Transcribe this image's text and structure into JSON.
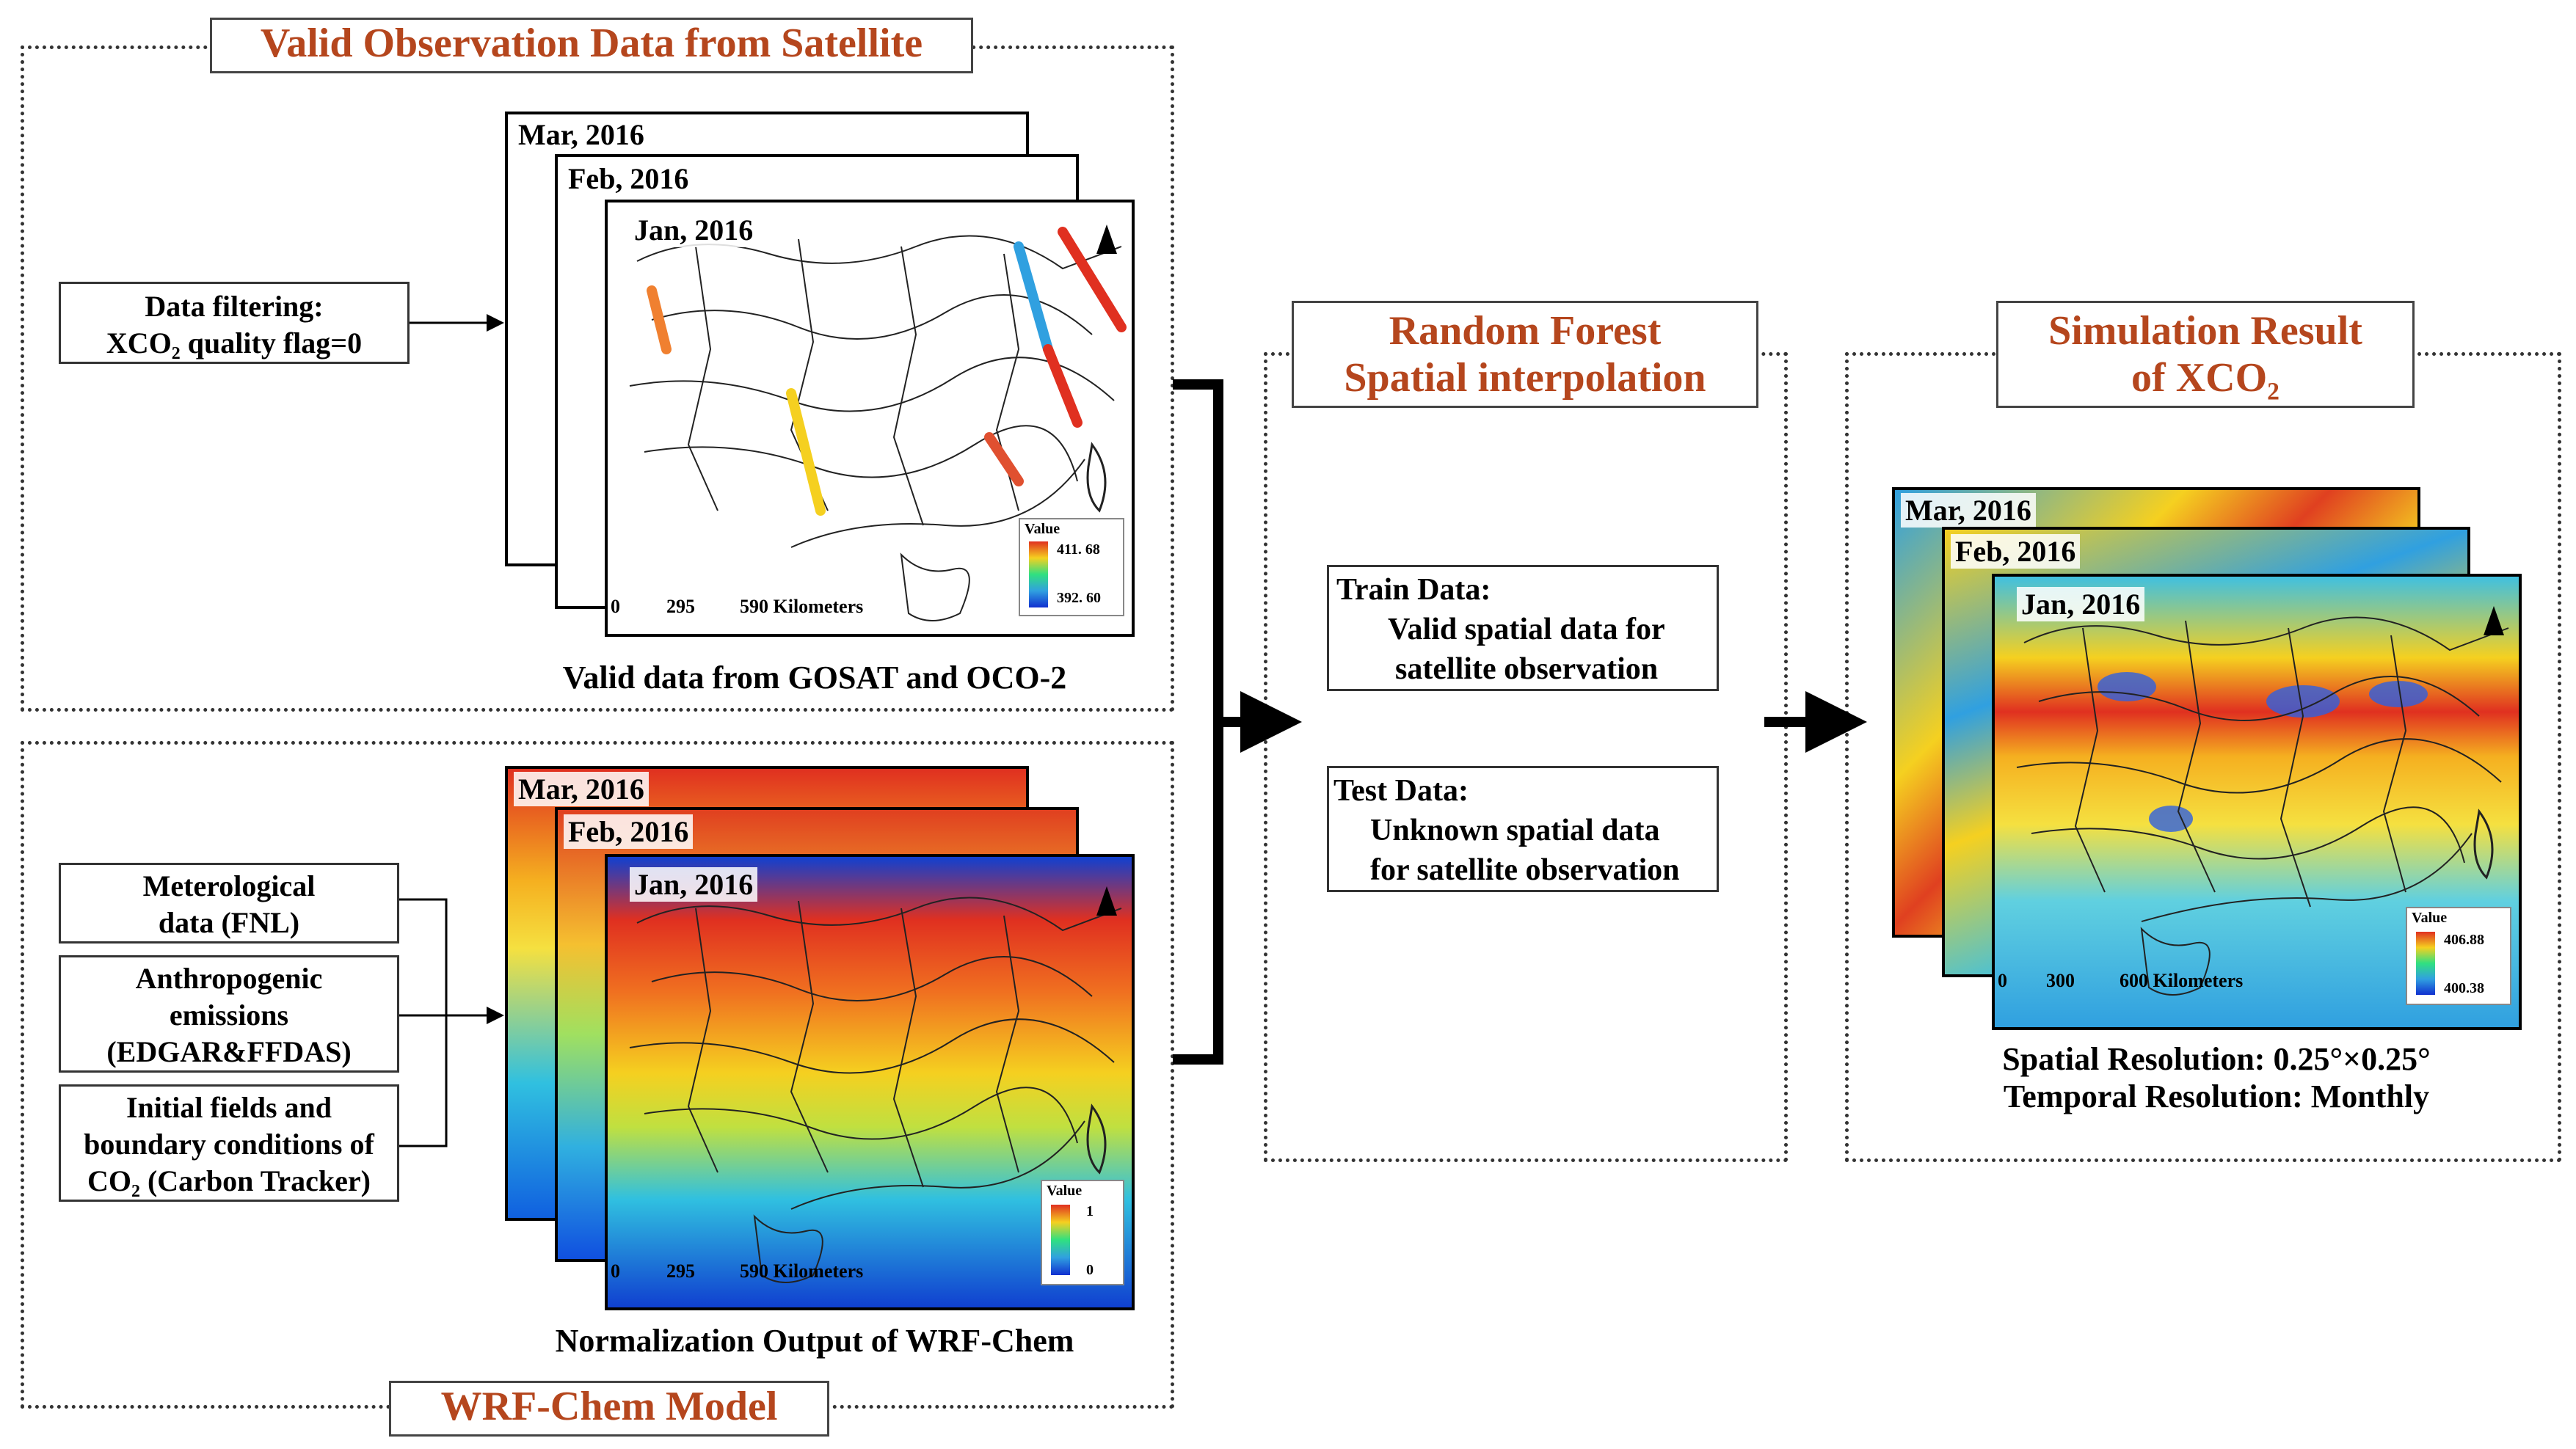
{
  "sections": {
    "satellite": {
      "title": "Valid Observation Data from Satellite",
      "filter_label_line1": "Data filtering:",
      "filter_label_line2": "XCO₂ quality flag=0",
      "maps": [
        "Mar, 2016",
        "Feb, 2016",
        "Jan, 2016"
      ],
      "legend_title": "Value",
      "legend_max": "411. 68",
      "legend_min": "392. 60",
      "scale": {
        "a": "0",
        "b": "295",
        "c": "590 Kilometers"
      },
      "caption": "Valid data from GOSAT and OCO-2"
    },
    "wrf": {
      "title": "WRF-Chem Model",
      "inputs": [
        {
          "line1": "Meterological",
          "line2": "data (FNL)",
          "line3": ""
        },
        {
          "line1": "Anthropogenic",
          "line2": "emissions",
          "line3": "(EDGAR&FFDAS)"
        },
        {
          "line1": "Initial fields and",
          "line2": "boundary conditions of",
          "line3": "CO₂ (Carbon Tracker)"
        }
      ],
      "maps": [
        "Mar, 2016",
        "Feb, 2016",
        "Jan, 2016"
      ],
      "legend_title": "Value",
      "legend_max": "1",
      "legend_min": "0",
      "scale": {
        "a": "0",
        "b": "295",
        "c": "590 Kilometers"
      },
      "caption": "Normalization Output of WRF-Chem"
    },
    "random_forest": {
      "title_line1": "Random Forest",
      "title_line2": "Spatial interpolation",
      "train_title": "Train Data:",
      "train_line1": "Valid spatial data for",
      "train_line2": "satellite observation",
      "test_title": "Test Data:",
      "test_line1": "Unknown spatial data",
      "test_line2": "for satellite observation"
    },
    "result": {
      "title_line1": "Simulation Result",
      "title_line2": "of XCO₂",
      "maps": [
        "Mar, 2016",
        "Feb, 2016",
        "Jan, 2016"
      ],
      "legend_title": "Value",
      "legend_max": "406.88",
      "legend_min": "400.38",
      "scale": {
        "a": "0",
        "b": "300",
        "c": "600 Kilometers"
      },
      "caption_line1": "Spatial Resolution: 0.25°×0.25°",
      "caption_line2": "Temporal Resolution: Monthly"
    }
  },
  "colors": {
    "title_text": "#b5461d",
    "arrow": "#000000",
    "ramp_hot": "#e03020",
    "ramp_warm": "#f5d020",
    "ramp_cool": "#30a0e0",
    "ramp_cold": "#1030d0"
  }
}
